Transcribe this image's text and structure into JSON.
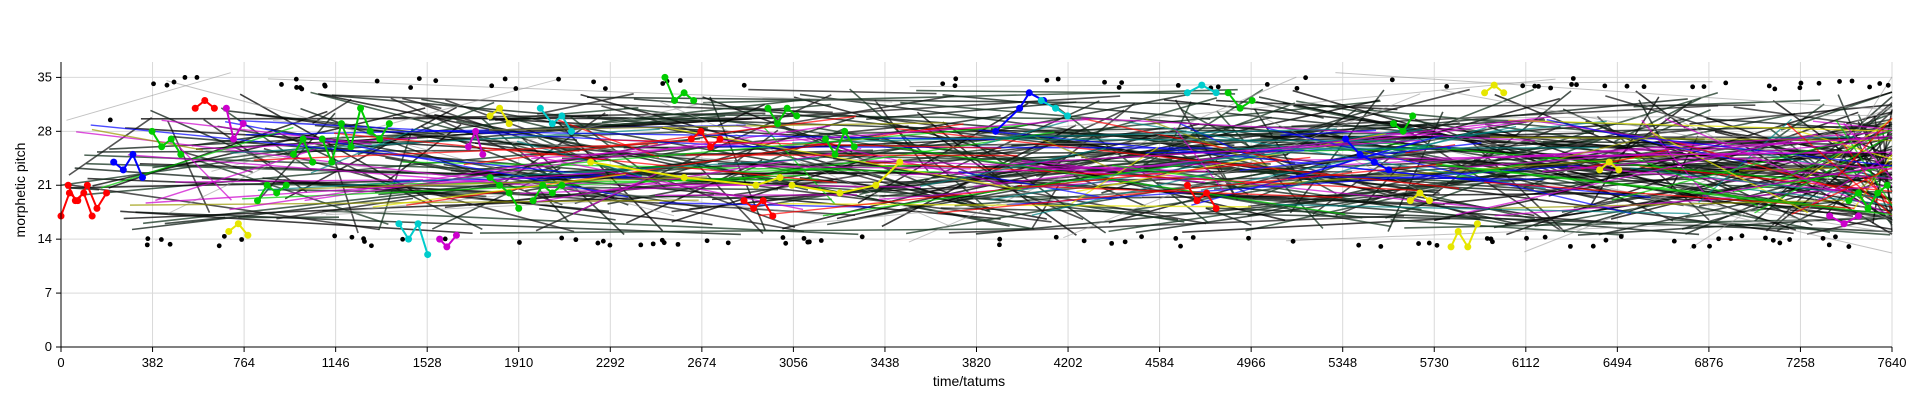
{
  "chart_data": {
    "type": "line",
    "title": "",
    "xlabel": "time/tatums",
    "ylabel": "morphetic pitch",
    "xlim": [
      0,
      7640
    ],
    "ylim": [
      0,
      37
    ],
    "x_ticks": [
      0,
      382,
      764,
      1146,
      1528,
      1910,
      2292,
      2674,
      3056,
      3438,
      3820,
      4202,
      4584,
      4966,
      5348,
      5730,
      6112,
      6494,
      6876,
      7258,
      7640
    ],
    "y_ticks": [
      0,
      7,
      14,
      21,
      28,
      35
    ],
    "grid": true,
    "legend": "none",
    "background_colors": [
      "#000000",
      "#0b1a12",
      "#1b1b1b",
      "#14331f"
    ],
    "colors": {
      "green": "#00cc00",
      "red": "#ff0000",
      "magenta": "#cc00cc",
      "yellow": "#e6e600",
      "blue": "#0000ff",
      "cyan": "#00cccc",
      "olive": "#999900",
      "teal": "#008080",
      "gray": "#999999"
    },
    "series": [
      {
        "color": "red",
        "points": [
          [
            0,
            17
          ],
          [
            35,
            20
          ],
          [
            70,
            19
          ],
          [
            110,
            21
          ],
          [
            150,
            18
          ],
          [
            190,
            20
          ]
        ]
      },
      {
        "color": "red",
        "points": [
          [
            30,
            21
          ],
          [
            60,
            19
          ],
          [
            95,
            20
          ],
          [
            130,
            17
          ]
        ]
      },
      {
        "color": "green",
        "points": [
          [
            380,
            28
          ],
          [
            420,
            26
          ],
          [
            460,
            27
          ],
          [
            500,
            25
          ]
        ]
      },
      {
        "color": "blue",
        "points": [
          [
            220,
            24
          ],
          [
            260,
            23
          ],
          [
            300,
            25
          ],
          [
            340,
            22
          ]
        ]
      },
      {
        "color": "red",
        "points": [
          [
            560,
            31
          ],
          [
            600,
            32
          ],
          [
            640,
            31
          ]
        ]
      },
      {
        "color": "magenta",
        "points": [
          [
            690,
            31
          ],
          [
            720,
            27
          ],
          [
            760,
            29
          ]
        ]
      },
      {
        "color": "yellow",
        "points": [
          [
            700,
            15
          ],
          [
            740,
            16
          ],
          [
            780,
            14.5
          ]
        ]
      },
      {
        "color": "green",
        "points": [
          [
            820,
            19
          ],
          [
            860,
            21
          ],
          [
            900,
            20
          ],
          [
            940,
            21
          ]
        ]
      },
      {
        "color": "green",
        "points": [
          [
            970,
            25
          ],
          [
            1010,
            27
          ],
          [
            1050,
            24
          ]
        ]
      },
      {
        "color": "green",
        "points": [
          [
            1090,
            27
          ],
          [
            1130,
            24
          ],
          [
            1170,
            29
          ],
          [
            1210,
            26
          ],
          [
            1250,
            31
          ],
          [
            1290,
            28
          ],
          [
            1330,
            27
          ],
          [
            1370,
            29
          ]
        ]
      },
      {
        "color": "cyan",
        "points": [
          [
            1410,
            16
          ],
          [
            1450,
            14
          ],
          [
            1490,
            16
          ],
          [
            1530,
            12
          ]
        ]
      },
      {
        "color": "magenta",
        "points": [
          [
            1580,
            14
          ],
          [
            1610,
            13
          ],
          [
            1650,
            14.5
          ]
        ]
      },
      {
        "color": "magenta",
        "points": [
          [
            1700,
            26
          ],
          [
            1730,
            28
          ],
          [
            1760,
            25
          ]
        ]
      },
      {
        "color": "yellow",
        "points": [
          [
            1790,
            30
          ],
          [
            1830,
            31
          ],
          [
            1870,
            29
          ]
        ]
      },
      {
        "color": "green",
        "points": [
          [
            1790,
            22
          ],
          [
            1830,
            21
          ],
          [
            1870,
            20
          ],
          [
            1910,
            18
          ]
        ]
      },
      {
        "color": "green",
        "points": [
          [
            1970,
            19
          ],
          [
            2010,
            21
          ],
          [
            2050,
            20
          ],
          [
            2090,
            21
          ]
        ]
      },
      {
        "color": "cyan",
        "points": [
          [
            2000,
            31
          ],
          [
            2050,
            29
          ],
          [
            2090,
            30
          ],
          [
            2130,
            28
          ]
        ]
      },
      {
        "color": "yellow",
        "points": [
          [
            2210,
            24
          ],
          [
            2600,
            22
          ],
          [
            2900,
            21
          ],
          [
            3000,
            22
          ]
        ]
      },
      {
        "color": "yellow",
        "points": [
          [
            3050,
            21
          ],
          [
            3250,
            20
          ],
          [
            3400,
            21
          ],
          [
            3500,
            24
          ]
        ]
      },
      {
        "color": "green",
        "points": [
          [
            2520,
            35
          ],
          [
            2560,
            32
          ],
          [
            2600,
            33
          ],
          [
            2640,
            32
          ]
        ]
      },
      {
        "color": "red",
        "points": [
          [
            2630,
            27
          ],
          [
            2670,
            28
          ],
          [
            2710,
            26
          ],
          [
            2750,
            27
          ]
        ]
      },
      {
        "color": "red",
        "points": [
          [
            2850,
            19
          ],
          [
            2890,
            18
          ],
          [
            2930,
            19
          ],
          [
            2970,
            17
          ]
        ]
      },
      {
        "color": "green",
        "points": [
          [
            2950,
            31
          ],
          [
            2990,
            29
          ],
          [
            3030,
            31
          ],
          [
            3070,
            30
          ]
        ]
      },
      {
        "color": "green",
        "points": [
          [
            3190,
            27
          ],
          [
            3230,
            25
          ],
          [
            3270,
            28
          ],
          [
            3310,
            26
          ]
        ]
      },
      {
        "color": "blue",
        "points": [
          [
            3900,
            28
          ],
          [
            4000,
            31
          ],
          [
            4040,
            33
          ],
          [
            4100,
            32
          ]
        ]
      },
      {
        "color": "cyan",
        "points": [
          [
            4090,
            32
          ],
          [
            4150,
            31
          ],
          [
            4200,
            30
          ]
        ]
      },
      {
        "color": "red",
        "points": [
          [
            4700,
            21
          ],
          [
            4740,
            19
          ],
          [
            4780,
            20
          ],
          [
            4820,
            18
          ]
        ]
      },
      {
        "color": "cyan",
        "points": [
          [
            4700,
            33
          ],
          [
            4760,
            34
          ],
          [
            4820,
            33
          ]
        ]
      },
      {
        "color": "green",
        "points": [
          [
            4870,
            33
          ],
          [
            4920,
            31
          ],
          [
            4970,
            32
          ]
        ]
      },
      {
        "color": "blue",
        "points": [
          [
            5360,
            27
          ],
          [
            5420,
            25
          ],
          [
            5480,
            24
          ],
          [
            5540,
            23
          ]
        ]
      },
      {
        "color": "green",
        "points": [
          [
            5560,
            29
          ],
          [
            5600,
            28
          ],
          [
            5640,
            30
          ]
        ]
      },
      {
        "color": "yellow",
        "points": [
          [
            5630,
            19
          ],
          [
            5670,
            20
          ],
          [
            5710,
            19
          ]
        ]
      },
      {
        "color": "yellow",
        "points": [
          [
            5800,
            13
          ],
          [
            5830,
            15
          ],
          [
            5870,
            13
          ],
          [
            5910,
            16
          ]
        ]
      },
      {
        "color": "yellow",
        "points": [
          [
            5940,
            33
          ],
          [
            5980,
            34
          ],
          [
            6020,
            33
          ]
        ]
      },
      {
        "color": "yellow",
        "points": [
          [
            6420,
            23
          ],
          [
            6460,
            24
          ],
          [
            6500,
            23
          ]
        ]
      },
      {
        "color": "green",
        "points": [
          [
            7460,
            19
          ],
          [
            7500,
            20
          ],
          [
            7540,
            18
          ],
          [
            7580,
            20
          ],
          [
            7620,
            21
          ]
        ]
      },
      {
        "color": "magenta",
        "points": [
          [
            7380,
            17
          ],
          [
            7440,
            16
          ],
          [
            7500,
            17
          ]
        ]
      }
    ]
  }
}
